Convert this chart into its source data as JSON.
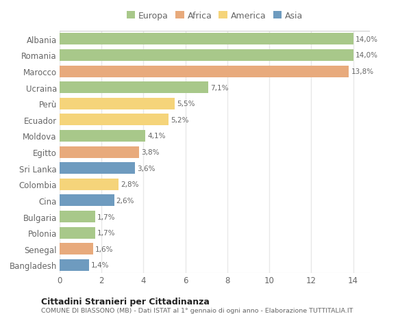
{
  "countries": [
    "Albania",
    "Romania",
    "Marocco",
    "Ucraina",
    "Perù",
    "Ecuador",
    "Moldova",
    "Egitto",
    "Sri Lanka",
    "Colombia",
    "Cina",
    "Bulgaria",
    "Polonia",
    "Senegal",
    "Bangladesh"
  ],
  "values": [
    14.0,
    14.0,
    13.8,
    7.1,
    5.5,
    5.2,
    4.1,
    3.8,
    3.6,
    2.8,
    2.6,
    1.7,
    1.7,
    1.6,
    1.4
  ],
  "labels": [
    "14,0%",
    "14,0%",
    "13,8%",
    "7,1%",
    "5,5%",
    "5,2%",
    "4,1%",
    "3,8%",
    "3,6%",
    "2,8%",
    "2,6%",
    "1,7%",
    "1,7%",
    "1,6%",
    "1,4%"
  ],
  "continents": [
    "Europa",
    "Europa",
    "Africa",
    "Europa",
    "America",
    "America",
    "Europa",
    "Africa",
    "Asia",
    "America",
    "Asia",
    "Europa",
    "Europa",
    "Africa",
    "Asia"
  ],
  "colors": {
    "Europa": "#a8c88a",
    "Africa": "#e8aa7c",
    "America": "#f5d47a",
    "Asia": "#6e9bbf"
  },
  "legend_order": [
    "Europa",
    "Africa",
    "America",
    "Asia"
  ],
  "title1": "Cittadini Stranieri per Cittadinanza",
  "title2": "COMUNE DI BIASSONO (MB) - Dati ISTAT al 1° gennaio di ogni anno - Elaborazione TUTTITALIA.IT",
  "xlim": [
    0,
    14.8
  ],
  "xticks": [
    0,
    2,
    4,
    6,
    8,
    10,
    12,
    14
  ],
  "bg_color": "#ffffff",
  "grid_color": "#e8e8e8",
  "label_color": "#666666",
  "bar_height": 0.72,
  "figsize": [
    6.0,
    4.6
  ],
  "dpi": 100
}
